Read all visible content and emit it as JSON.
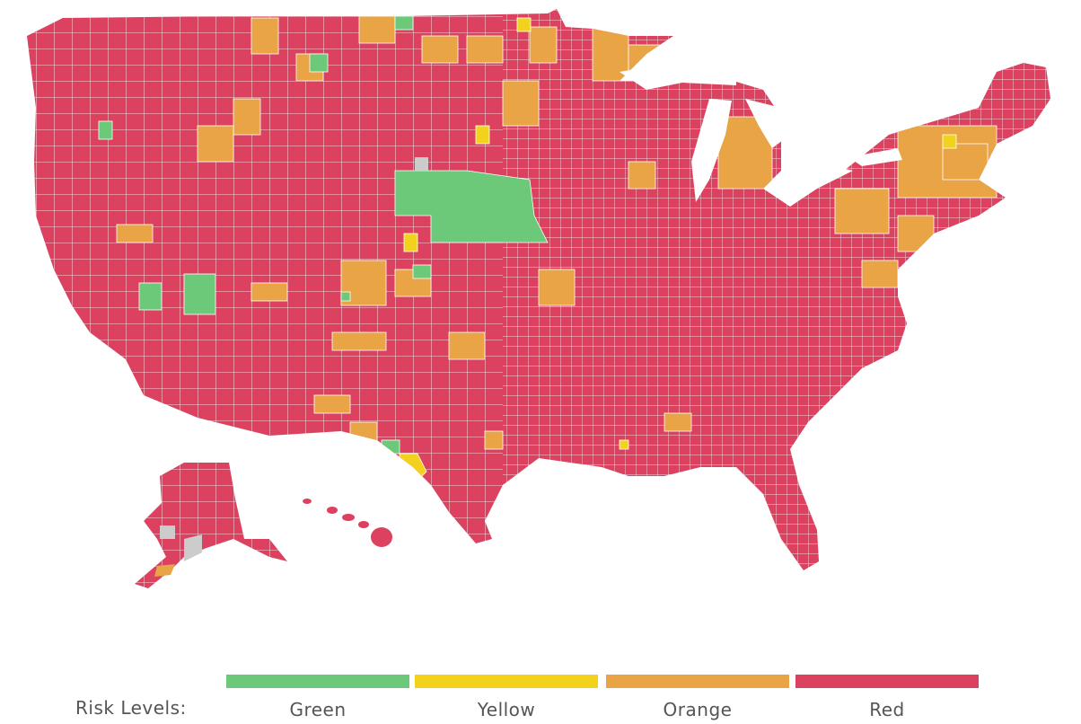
{
  "colors": {
    "green": "#6CC979",
    "yellow": "#F2D21C",
    "orange": "#E9A446",
    "red": "#DC4260",
    "no_data": "#CCCCCC",
    "border": "#FFFFFF"
  },
  "legend": {
    "title": "Risk Levels:",
    "levels": [
      {
        "label": "Green",
        "color": "#6CC979"
      },
      {
        "label": "Yellow",
        "color": "#F2D21C"
      },
      {
        "label": "Orange",
        "color": "#E9A446"
      },
      {
        "label": "Red",
        "color": "#DC4260"
      }
    ]
  }
}
